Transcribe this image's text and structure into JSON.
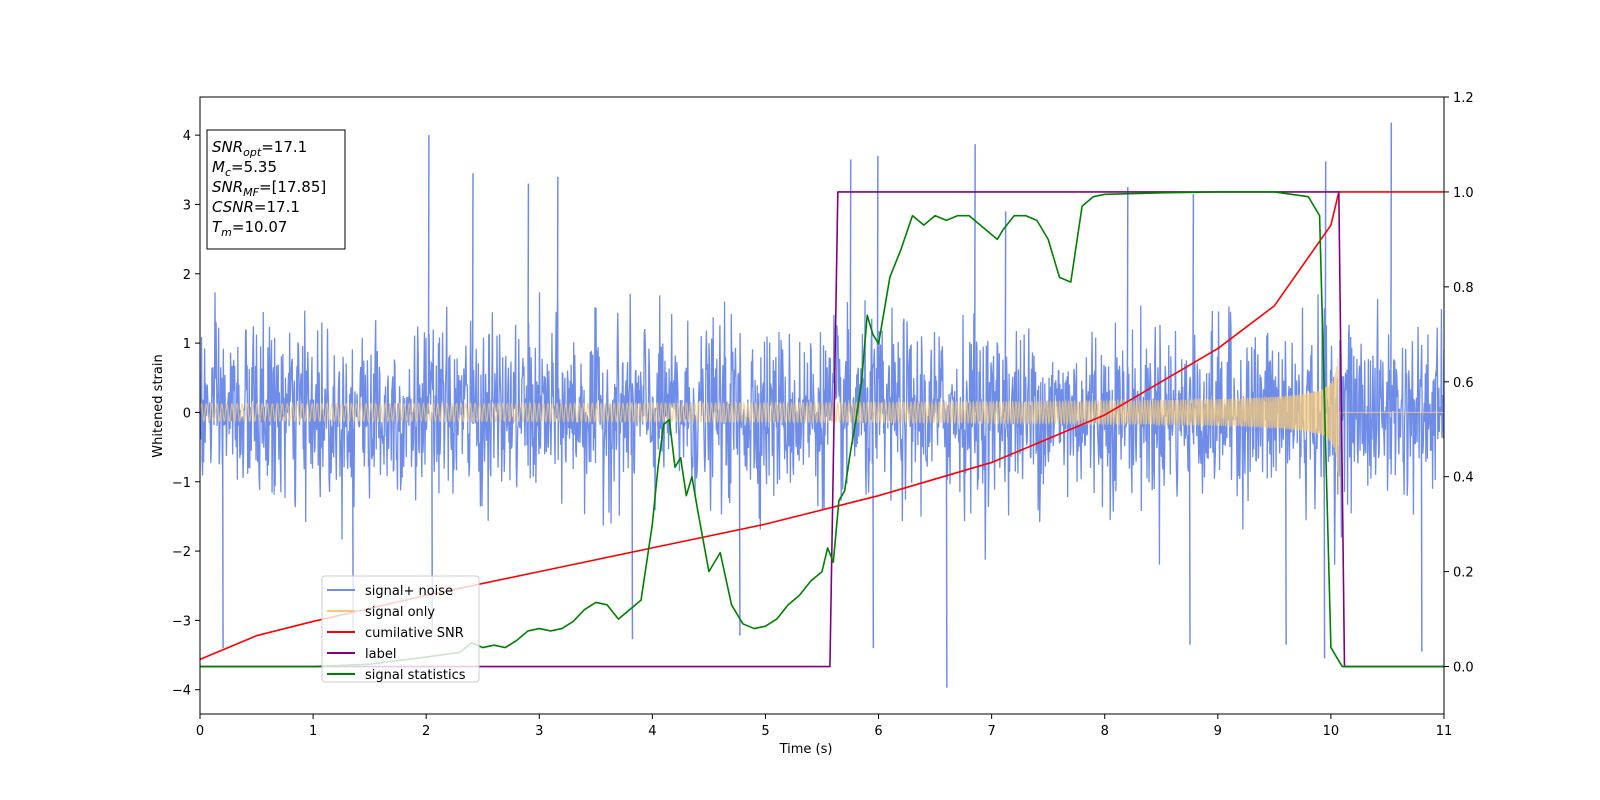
{
  "chart_data": {
    "type": "line",
    "xlabel": "Time (s)",
    "ylabel": "Whitened strain",
    "xlim": [
      0,
      11
    ],
    "ylim_left": [
      -4.35,
      4.55
    ],
    "ylim_right": [
      -0.1,
      1.2
    ],
    "xticks": [
      "0",
      "1",
      "2",
      "3",
      "4",
      "5",
      "6",
      "7",
      "8",
      "9",
      "10",
      "11"
    ],
    "yticks_left": [
      "−4",
      "−3",
      "−2",
      "−1",
      "0",
      "1",
      "2",
      "3",
      "4"
    ],
    "yticks_right": [
      "0.0",
      "0.2",
      "0.4",
      "0.6",
      "0.8",
      "1.0",
      "1.2"
    ],
    "grid": false,
    "legend_position": "lower-left",
    "info_box": {
      "lines": [
        {
          "base": "SNR",
          "sub": "opt",
          "rest": "=17.1"
        },
        {
          "base": "M",
          "sub": "c",
          "rest": "=5.35"
        },
        {
          "base": "SNR",
          "sub": "MF",
          "rest": "=[17.85]"
        },
        {
          "base": "CSNR",
          "sub": "",
          "rest": "=17.1"
        },
        {
          "base": "T",
          "sub": "m",
          "rest": "=10.07"
        }
      ]
    },
    "series": [
      {
        "name": "signal+ noise",
        "axis": "left",
        "color": "#6f8de8",
        "noise_sigma": 0.6,
        "max_spikes": [
          [
            2.02,
            4.0
          ],
          [
            2.41,
            3.45
          ],
          [
            3.16,
            3.4
          ],
          [
            5.75,
            3.65
          ],
          [
            5.99,
            3.7
          ],
          [
            6.85,
            3.87
          ],
          [
            7.12,
            2.9
          ],
          [
            8.2,
            3.25
          ],
          [
            9.95,
            3.62
          ],
          [
            10.53,
            4.18
          ],
          [
            2.9,
            3.3
          ],
          [
            8.78,
            3.15
          ]
        ],
        "min_spikes": [
          [
            0.2,
            -3.4
          ],
          [
            2.05,
            -3.2
          ],
          [
            3.82,
            -3.27
          ],
          [
            5.95,
            -3.4
          ],
          [
            6.6,
            -3.97
          ],
          [
            8.75,
            -3.35
          ],
          [
            9.6,
            -3.35
          ],
          [
            10.8,
            -3.45
          ],
          [
            4.77,
            -3.22
          ],
          [
            1.35,
            -3.1
          ],
          [
            9.94,
            -3.55
          ]
        ]
      },
      {
        "name": "signal only",
        "axis": "left",
        "color": "#f5c97a",
        "merger_time": 10.07,
        "amplitude_at_merger": 1.25,
        "amplitude_at_start": 0.08
      },
      {
        "name": "cumilative SNR",
        "axis": "right",
        "color": "#ff0000",
        "points": [
          [
            0.0,
            0.015
          ],
          [
            0.5,
            0.065
          ],
          [
            1.0,
            0.095
          ],
          [
            2.0,
            0.15
          ],
          [
            3.0,
            0.2
          ],
          [
            4.0,
            0.25
          ],
          [
            5.0,
            0.3
          ],
          [
            6.0,
            0.36
          ],
          [
            7.0,
            0.43
          ],
          [
            8.0,
            0.53
          ],
          [
            9.0,
            0.67
          ],
          [
            9.5,
            0.76
          ],
          [
            10.0,
            0.93
          ],
          [
            10.07,
            1.0
          ],
          [
            11.0,
            1.0
          ]
        ]
      },
      {
        "name": "label",
        "axis": "right",
        "color": "#800080",
        "points": [
          [
            0.0,
            0.0
          ],
          [
            5.57,
            0.0
          ],
          [
            5.64,
            1.0
          ],
          [
            10.07,
            1.0
          ],
          [
            10.12,
            0.0
          ],
          [
            11.0,
            0.0
          ]
        ]
      },
      {
        "name": "signal statistics",
        "axis": "right",
        "color": "#008000",
        "points": [
          [
            0.0,
            0.0
          ],
          [
            1.0,
            0.0
          ],
          [
            1.5,
            0.005
          ],
          [
            2.0,
            0.02
          ],
          [
            2.3,
            0.03
          ],
          [
            2.4,
            0.05
          ],
          [
            2.5,
            0.04
          ],
          [
            2.6,
            0.045
          ],
          [
            2.7,
            0.04
          ],
          [
            2.8,
            0.055
          ],
          [
            2.9,
            0.075
          ],
          [
            3.0,
            0.08
          ],
          [
            3.1,
            0.075
          ],
          [
            3.2,
            0.08
          ],
          [
            3.3,
            0.095
          ],
          [
            3.4,
            0.12
          ],
          [
            3.5,
            0.135
          ],
          [
            3.6,
            0.13
          ],
          [
            3.7,
            0.1
          ],
          [
            3.8,
            0.12
          ],
          [
            3.9,
            0.14
          ],
          [
            4.0,
            0.3
          ],
          [
            4.05,
            0.42
          ],
          [
            4.1,
            0.51
          ],
          [
            4.15,
            0.52
          ],
          [
            4.2,
            0.42
          ],
          [
            4.25,
            0.44
          ],
          [
            4.3,
            0.36
          ],
          [
            4.35,
            0.4
          ],
          [
            4.4,
            0.33
          ],
          [
            4.5,
            0.2
          ],
          [
            4.6,
            0.24
          ],
          [
            4.7,
            0.13
          ],
          [
            4.8,
            0.09
          ],
          [
            4.9,
            0.08
          ],
          [
            5.0,
            0.085
          ],
          [
            5.1,
            0.1
          ],
          [
            5.2,
            0.13
          ],
          [
            5.3,
            0.15
          ],
          [
            5.4,
            0.18
          ],
          [
            5.5,
            0.2
          ],
          [
            5.55,
            0.25
          ],
          [
            5.6,
            0.22
          ],
          [
            5.65,
            0.35
          ],
          [
            5.7,
            0.37
          ],
          [
            5.75,
            0.45
          ],
          [
            5.8,
            0.52
          ],
          [
            5.85,
            0.6
          ],
          [
            5.9,
            0.74
          ],
          [
            5.95,
            0.7
          ],
          [
            6.0,
            0.68
          ],
          [
            6.05,
            0.75
          ],
          [
            6.1,
            0.82
          ],
          [
            6.2,
            0.88
          ],
          [
            6.3,
            0.95
          ],
          [
            6.4,
            0.93
          ],
          [
            6.5,
            0.95
          ],
          [
            6.6,
            0.94
          ],
          [
            6.7,
            0.95
          ],
          [
            6.8,
            0.95
          ],
          [
            6.9,
            0.93
          ],
          [
            7.0,
            0.91
          ],
          [
            7.05,
            0.9
          ],
          [
            7.1,
            0.92
          ],
          [
            7.2,
            0.95
          ],
          [
            7.3,
            0.95
          ],
          [
            7.4,
            0.94
          ],
          [
            7.5,
            0.9
          ],
          [
            7.6,
            0.82
          ],
          [
            7.7,
            0.81
          ],
          [
            7.8,
            0.97
          ],
          [
            7.9,
            0.99
          ],
          [
            8.0,
            0.995
          ],
          [
            8.5,
            0.998
          ],
          [
            9.0,
            1.0
          ],
          [
            9.5,
            1.0
          ],
          [
            9.8,
            0.99
          ],
          [
            9.9,
            0.95
          ],
          [
            10.0,
            0.04
          ],
          [
            10.05,
            0.02
          ],
          [
            10.1,
            0.0
          ],
          [
            11.0,
            0.0
          ]
        ]
      }
    ]
  }
}
